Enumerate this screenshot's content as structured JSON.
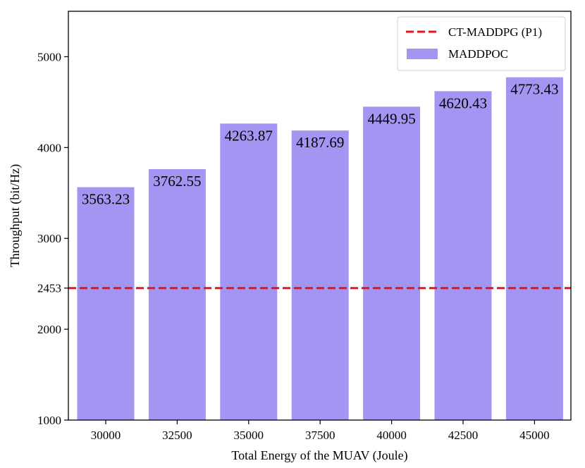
{
  "chart_data": {
    "type": "bar",
    "title": "",
    "xlabel": "Total Energy of the MUAV (Joule)",
    "ylabel": "Throughput (bit/Hz)",
    "categories": [
      "30000",
      "32500",
      "35000",
      "37500",
      "40000",
      "42500",
      "45000"
    ],
    "series": [
      {
        "name": "MADDPOC",
        "values": [
          3563.23,
          3762.55,
          4263.87,
          4187.69,
          4449.95,
          4620.43,
          4773.43
        ],
        "labels": [
          "3563.23",
          "3762.55",
          "4263.87",
          "4187.69",
          "4449.95",
          "4620.43",
          "4773.43"
        ],
        "color": "#a396f2"
      }
    ],
    "reference_line": {
      "name": "CT-MADDPG (P1)",
      "value": 2453,
      "color": "#e8141c",
      "style": "dashed"
    },
    "ylim": [
      1000,
      5500
    ],
    "yticks": [
      1000,
      2000,
      2453,
      3000,
      4000,
      5000
    ],
    "ytick_labels": [
      "1000",
      "2000",
      "2453",
      "3000",
      "4000",
      "5000"
    ],
    "grid": false,
    "legend": {
      "position": "top-right",
      "entries": [
        "CT-MADDPG (P1)",
        "MADDPOC"
      ]
    }
  }
}
